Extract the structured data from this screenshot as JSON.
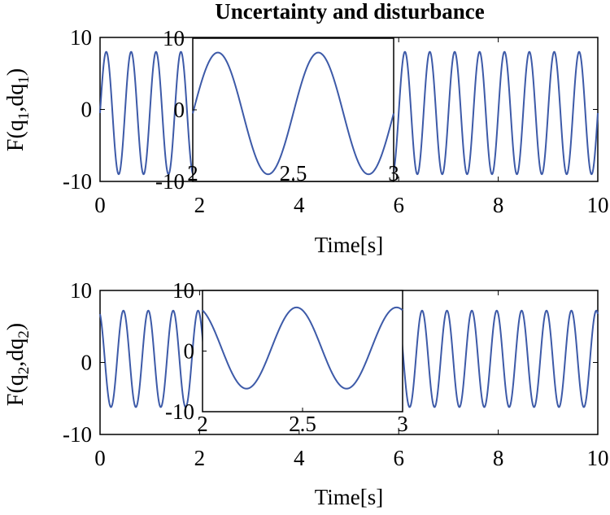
{
  "chart_data": [
    {
      "type": "line",
      "title": "Uncertainty and disturbance",
      "xlabel": "Time[s]",
      "ylabel": "F(q1,dq1)",
      "ylabel_parts": [
        "F(q",
        "1",
        ",dq",
        "1",
        ")"
      ],
      "xlim": [
        0,
        10
      ],
      "ylim": [
        -10,
        10
      ],
      "x_ticks": [
        "0",
        "2",
        "4",
        "6",
        "8",
        "10"
      ],
      "y_ticks": [
        "10",
        "0",
        "-10"
      ],
      "series": [
        {
          "name": "F(q1,dq1)",
          "color": "#3d5aa8",
          "formula": "y = -0.5 + 8.5*sin(2*pi*t/0.5)",
          "amplitude": 8.5,
          "offset": -0.5,
          "period": 0.5,
          "max": 8,
          "min": -9
        }
      ],
      "inset": {
        "xlim": [
          2,
          3
        ],
        "ylim": [
          -10,
          10
        ],
        "x_ticks": [
          "2",
          "2.5",
          "3"
        ],
        "y_ticks": [
          "10",
          "0",
          "-10"
        ]
      }
    },
    {
      "type": "line",
      "title": "",
      "xlabel": "Time[s]",
      "ylabel": "F(q2,dq2)",
      "ylabel_parts": [
        "F(q",
        "2",
        ",dq",
        "2",
        ")"
      ],
      "xlim": [
        0,
        10
      ],
      "ylim": [
        -10,
        10
      ],
      "x_ticks": [
        "0",
        "2",
        "4",
        "6",
        "8",
        "10"
      ],
      "y_ticks": [
        "10",
        "0",
        "-10"
      ],
      "series": [
        {
          "name": "F(q2,dq2)",
          "color": "#3d5aa8",
          "formula": "y = 0.5 + 6.7*sin(2*pi*t/0.5 + 1.95)",
          "amplitude": 6.7,
          "offset": 0.5,
          "period": 0.5,
          "max": 7.2,
          "min": -6.2
        }
      ],
      "inset": {
        "xlim": [
          2,
          3
        ],
        "ylim": [
          -10,
          10
        ],
        "x_ticks": [
          "2",
          "2.5",
          "3"
        ],
        "y_ticks": [
          "10",
          "0",
          "-10"
        ]
      }
    }
  ]
}
